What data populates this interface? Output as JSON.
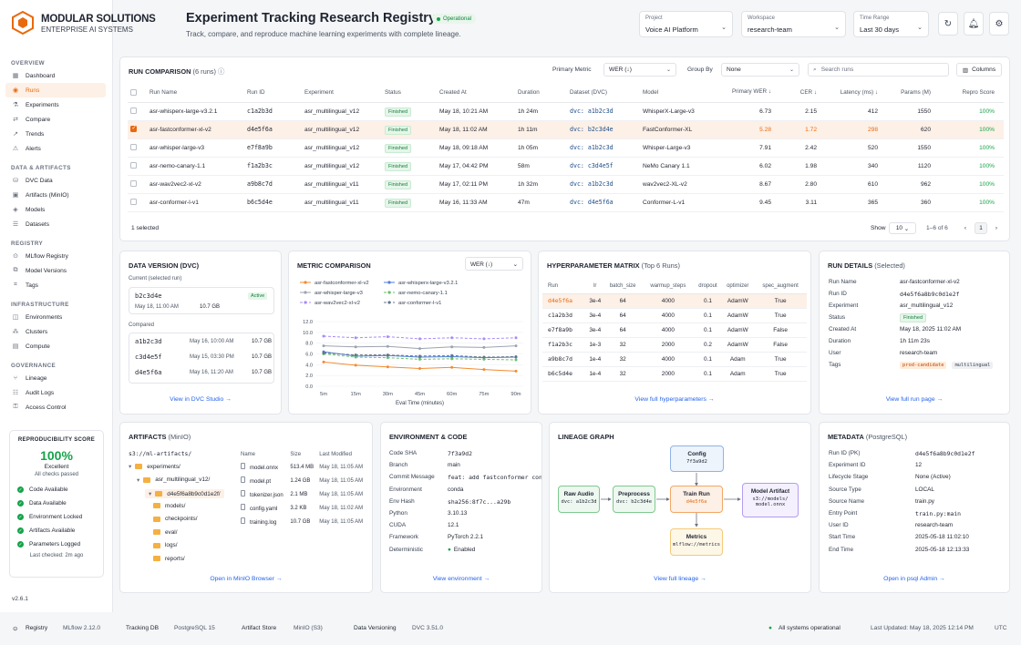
{
  "brand": {
    "name": "MODULAR SOLUTIONS",
    "sub": "ENTERPRISE AI SYSTEMS"
  },
  "sidebar": {
    "sections": [
      {
        "label": "OVERVIEW",
        "items": [
          {
            "label": "Dashboard",
            "icon": "dashboard-icon"
          },
          {
            "label": "Runs",
            "icon": "runs-icon",
            "active": true
          },
          {
            "label": "Experiments",
            "icon": "experiments-icon"
          },
          {
            "label": "Compare",
            "icon": "compare-icon"
          },
          {
            "label": "Trends",
            "icon": "trends-icon"
          },
          {
            "label": "Alerts",
            "icon": "alerts-icon"
          }
        ]
      },
      {
        "label": "DATA & ARTIFACTS",
        "items": [
          {
            "label": "DVC Data",
            "icon": "dvc-icon"
          },
          {
            "label": "Artifacts (MinIO)",
            "icon": "artifacts-icon"
          },
          {
            "label": "Models",
            "icon": "models-icon"
          },
          {
            "label": "Datasets",
            "icon": "datasets-icon"
          }
        ]
      },
      {
        "label": "REGISTRY",
        "items": [
          {
            "label": "MLflow Registry",
            "icon": "registry-icon"
          },
          {
            "label": "Model Versions",
            "icon": "versions-icon"
          },
          {
            "label": "Tags",
            "icon": "tags-icon"
          }
        ]
      },
      {
        "label": "INFRASTRUCTURE",
        "items": [
          {
            "label": "Environments",
            "icon": "environments-icon"
          },
          {
            "label": "Clusters",
            "icon": "clusters-icon"
          },
          {
            "label": "Compute",
            "icon": "compute-icon"
          }
        ]
      },
      {
        "label": "GOVERNANCE",
        "items": [
          {
            "label": "Lineage",
            "icon": "lineage-icon"
          },
          {
            "label": "Audit Logs",
            "icon": "audit-icon"
          },
          {
            "label": "Access Control",
            "icon": "access-icon"
          }
        ]
      }
    ],
    "repro": {
      "title": "REPRODUCIBILITY SCORE",
      "pct": "100%",
      "label": "Excellent",
      "sub": "All checks passed",
      "checks": [
        "Code Available",
        "Data Available",
        "Environment Locked",
        "Artifacts Available",
        "Parameters Logged"
      ],
      "last": "Last checked: 2m ago"
    },
    "version": "v2.6.1"
  },
  "header": {
    "title": "Experiment Tracking Research Registry",
    "status": "Operational",
    "subtitle": "Track, compare, and reproduce machine learning experiments with complete lineage.",
    "project": {
      "label": "Project",
      "value": "Voice AI Platform"
    },
    "workspace": {
      "label": "Workspace",
      "value": "research-team"
    },
    "time_range": {
      "label": "Time Range",
      "value": "Last 30 days"
    }
  },
  "runs": {
    "title": "RUN COMPARISON",
    "count": "(6 runs)",
    "primary_metric_label": "Primary Metric",
    "primary_metric": "WER (↓)",
    "group_by_label": "Group By",
    "group_by": "None",
    "search_placeholder": "Search runs",
    "columns_label": "Columns",
    "headers": [
      "Run Name",
      "Run ID",
      "Experiment",
      "Status",
      "Created At",
      "Duration",
      "Dataset (DVC)",
      "Model",
      "Primary WER ↓",
      "CER ↓",
      "Latency (ms) ↓",
      "Params (M)",
      "Repro Score"
    ],
    "rows": [
      [
        "asr-whisperx-large-v3.2.1",
        "c1a2b3d",
        "asr_multilingual_v12",
        "Finished",
        "May 18, 10:21 AM",
        "1h 24m",
        "dvc: a1b2c3d",
        "WhisperX-Large-v3",
        "6.73",
        "2.15",
        "412",
        "1550",
        "100%"
      ],
      [
        "asr-fastconformer-xl-v2",
        "d4e5f6a",
        "asr_multilingual_v12",
        "Finished",
        "May 18, 11:02 AM",
        "1h 11m",
        "dvc: b2c3d4e",
        "FastConformer-XL",
        "5.28",
        "1.72",
        "298",
        "620",
        "100%"
      ],
      [
        "asr-whisper-large-v3",
        "e7f8a9b",
        "asr_multilingual_v12",
        "Finished",
        "May 18, 09:18 AM",
        "1h 05m",
        "dvc: a1b2c3d",
        "Whisper-Large-v3",
        "7.91",
        "2.42",
        "520",
        "1550",
        "100%"
      ],
      [
        "asr-nemo-canary-1.1",
        "f1a2b3c",
        "asr_multilingual_v12",
        "Finished",
        "May 17, 04:42 PM",
        "58m",
        "dvc: c3d4e5f",
        "NeMo Canary 1.1",
        "6.02",
        "1.98",
        "340",
        "1120",
        "100%"
      ],
      [
        "asr-wav2vec2-xl-v2",
        "a9b8c7d",
        "asr_multilingual_v11",
        "Finished",
        "May 17, 02:11 PM",
        "1h 32m",
        "dvc: a1b2c3d",
        "wav2vec2-XL-v2",
        "8.67",
        "2.80",
        "610",
        "962",
        "100%"
      ],
      [
        "asr-conformer-l-v1",
        "b6c5d4e",
        "asr_multilingual_v11",
        "Finished",
        "May 16, 11:33 AM",
        "47m",
        "dvc: d4e5f6a",
        "Conformer-L-v1",
        "9.45",
        "3.11",
        "365",
        "360",
        "100%"
      ]
    ],
    "selected_text": "1 selected",
    "show_label": "Show",
    "page_size": "10",
    "range": "1–6 of 6",
    "page": "1"
  },
  "dvc": {
    "title": "DATA VERSION (DVC)",
    "current_label": "Current (selected run)",
    "current": {
      "hash": "b2c3d4e",
      "status": "Active",
      "date": "May 18, 11:00 AM",
      "size": "10.7 GB"
    },
    "compared_label": "Compared",
    "compared": [
      {
        "hash": "a1b2c3d",
        "date": "May 16, 10:00 AM",
        "size": "10.7 GB"
      },
      {
        "hash": "c3d4e5f",
        "date": "May 15, 03:30 PM",
        "size": "10.7 GB"
      },
      {
        "hash": "d4e5f6a",
        "date": "May 16, 11:20 AM",
        "size": "10.7 GB"
      }
    ],
    "link": "View in DVC Studio →"
  },
  "metric": {
    "title": "METRIC COMPARISON",
    "select": "WER (↓)",
    "link": "",
    "xlabel": "Eval Time (minutes)"
  },
  "chart_data": {
    "type": "line",
    "title": "METRIC COMPARISON",
    "xlabel": "Eval Time (minutes)",
    "ylabel": "",
    "x": [
      "5m",
      "15m",
      "30m",
      "45m",
      "60m",
      "75m",
      "90m"
    ],
    "ylim": [
      0,
      12
    ],
    "yticks": [
      "0.0",
      "2.0",
      "4.0",
      "6.0",
      "8.0",
      "10.0",
      "12.0"
    ],
    "series": [
      {
        "name": "asr-fastconformer-xl-v2",
        "color": "#f28b30",
        "dash": "",
        "values": [
          4.5,
          3.9,
          3.6,
          3.3,
          3.5,
          3.1,
          2.8
        ]
      },
      {
        "name": "asr-whisperx-large-v3.2.1",
        "color": "#4f7fdc",
        "dash": "",
        "values": [
          6.4,
          5.6,
          5.7,
          5.4,
          5.5,
          5.3,
          5.4
        ]
      },
      {
        "name": "asr-whisper-large-v3",
        "color": "#9ca3af",
        "dash": "",
        "values": [
          7.5,
          7.3,
          7.4,
          7.0,
          7.3,
          7.2,
          7.5
        ]
      },
      {
        "name": "asr-nemo-canary-1.1",
        "color": "#6abf69",
        "dash": "3,2",
        "values": [
          6.0,
          5.4,
          5.3,
          5.0,
          5.1,
          5.0,
          4.9
        ]
      },
      {
        "name": "asr-wav2vec2-xl-v2",
        "color": "#a78bfa",
        "dash": "3,2",
        "values": [
          9.3,
          9.0,
          9.2,
          8.8,
          9.0,
          8.8,
          9.0
        ]
      },
      {
        "name": "asr-conformer-l-v1",
        "color": "#64748b",
        "dash": "3,2",
        "values": [
          6.2,
          5.8,
          5.8,
          5.6,
          5.7,
          5.4,
          5.5
        ]
      }
    ]
  },
  "hyper": {
    "title": "HYPERPARAMETER MATRIX",
    "sub": "(Top 6 Runs)",
    "headers": [
      "Run",
      "lr",
      "batch_size",
      "warmup_steps",
      "dropout",
      "optimizer",
      "spec_augment"
    ],
    "rows": [
      [
        "d4e5f6a",
        "3e-4",
        "64",
        "4000",
        "0.1",
        "AdamW",
        "True"
      ],
      [
        "c1a2b3d",
        "3e-4",
        "64",
        "4000",
        "0.1",
        "AdamW",
        "True"
      ],
      [
        "e7f8a9b",
        "3e-4",
        "64",
        "4000",
        "0.1",
        "AdamW",
        "False"
      ],
      [
        "f1a2b3c",
        "1e-3",
        "32",
        "2000",
        "0.2",
        "AdamW",
        "False"
      ],
      [
        "a9b8c7d",
        "1e-4",
        "32",
        "4000",
        "0.1",
        "Adam",
        "True"
      ],
      [
        "b6c5d4e",
        "1e-4",
        "32",
        "2000",
        "0.1",
        "Adam",
        "True"
      ]
    ],
    "link": "View full hyperparameters →"
  },
  "details": {
    "title": "RUN DETAILS",
    "sub": "(Selected)",
    "rows": [
      {
        "k": "Run Name",
        "v": "asr-fastconformer-xl-v2"
      },
      {
        "k": "Run ID",
        "v": "d4e5f6a8b9c0d1e2f"
      },
      {
        "k": "Experiment",
        "v": "asr_multilingual_v12"
      },
      {
        "k": "Status",
        "v": "Finished"
      },
      {
        "k": "Created At",
        "v": "May 18, 2025 11:02 AM"
      },
      {
        "k": "Duration",
        "v": "1h 11m 23s"
      },
      {
        "k": "User",
        "v": "research-team"
      },
      {
        "k": "Tags",
        "v": ""
      }
    ],
    "tags": [
      "prod-candidate",
      "multilingual"
    ],
    "link": "View full run page →"
  },
  "artifacts": {
    "title": "ARTIFACTS",
    "sub": "(MinIO)",
    "root": "s3://ml-artifacts/",
    "tree": [
      "experiments/",
      "asr_multilingual_v12/",
      "d4e5f6a8b9c0d1e2f/",
      "models/",
      "checkpoints/",
      "eval/",
      "logs/",
      "reports/"
    ],
    "headers": [
      "Name",
      "Size",
      "Last Modified"
    ],
    "files": [
      [
        "model.onnx",
        "513.4 MB",
        "May 18, 11:05 AM"
      ],
      [
        "model.pt",
        "1.24 GB",
        "May 18, 11:05 AM"
      ],
      [
        "tokenizer.json",
        "2.1 MB",
        "May 18, 11:05 AM"
      ],
      [
        "config.yaml",
        "3.2 KB",
        "May 18, 11:02 AM"
      ],
      [
        "training.log",
        "10.7 GB",
        "May 18, 11:05 AM"
      ]
    ],
    "link": "Open in MinIO Browser →"
  },
  "env": {
    "title": "ENVIRONMENT & CODE",
    "rows": [
      {
        "k": "Code SHA",
        "v": "7f3a9d2"
      },
      {
        "k": "Branch",
        "v": "main"
      },
      {
        "k": "Commit Message",
        "v": "feat: add fastconformer config"
      },
      {
        "k": "Environment",
        "v": "conda"
      },
      {
        "k": "Env Hash",
        "v": "sha256:8f7c...a29b"
      },
      {
        "k": "Python",
        "v": "3.10.13"
      },
      {
        "k": "CUDA",
        "v": "12.1"
      },
      {
        "k": "Framework",
        "v": "PyTorch 2.2.1"
      },
      {
        "k": "Deterministic",
        "v": "Enabled"
      }
    ],
    "link": "View environment →"
  },
  "lineage": {
    "title": "LINEAGE GRAPH",
    "nodes": {
      "raw": {
        "t": "Raw Audio",
        "s": "dvc: a1b2c3d"
      },
      "pre": {
        "t": "Preprocess",
        "s": "dvc: b2c3d4e"
      },
      "cfg": {
        "t": "Config",
        "s": "7f3a9d2"
      },
      "train": {
        "t": "Train Run",
        "s": "d4e5f6a"
      },
      "model": {
        "t": "Model Artifact",
        "s": "s3://models/ model.onnx"
      },
      "metrics": {
        "t": "Metrics",
        "s": "mlflow://metrics"
      }
    },
    "link": "View full lineage →"
  },
  "meta": {
    "title": "METADATA",
    "sub": "(PostgreSQL)",
    "rows": [
      {
        "k": "Run ID (PK)",
        "v": "d4e5f6a8b9c0d1e2f"
      },
      {
        "k": "Experiment ID",
        "v": "12"
      },
      {
        "k": "Lifecycle Stage",
        "v": "None (Active)"
      },
      {
        "k": "Source Type",
        "v": "LOCAL"
      },
      {
        "k": "Source Name",
        "v": "train.py"
      },
      {
        "k": "Entry Point",
        "v": "train.py:main"
      },
      {
        "k": "User ID",
        "v": "research-team"
      },
      {
        "k": "Start Time",
        "v": "2025-05-18 11:02:10"
      },
      {
        "k": "End Time",
        "v": "2025-05-18 12:13:33"
      }
    ],
    "link": "Open in psql Admin →"
  },
  "footer": {
    "registry": "Registry",
    "mlflow": "MLflow 2.12.0",
    "tracking": "Tracking DB",
    "pg": "PostgreSQL 15",
    "artifact": "Artifact Store",
    "minio": "MinIO (S3)",
    "dv": "Data Versioning",
    "dvcv": "DVC 3.51.0",
    "status": "All systems operational",
    "updated": "Last Updated: May 18, 2025 12:14 PM",
    "tz": "UTC"
  },
  "colors": {
    "accent": "#e8690e",
    "success": "#16a34a",
    "link": "#2563eb"
  }
}
